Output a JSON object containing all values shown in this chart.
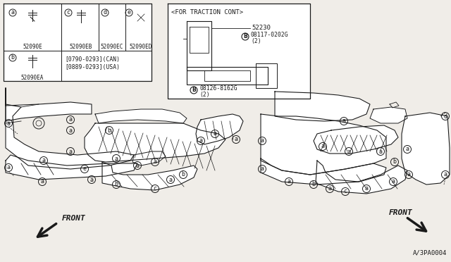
{
  "bg_color": "#f0ede8",
  "line_color": "#1a1a1a",
  "part_date_can": "[0790-0293](CAN)",
  "part_date_usa": "[0889-0293](USA)",
  "traction_label": "<FOR TRACTION CONT>",
  "part_52230": "52230",
  "part_08117": "08117-0202G",
  "part_08117_qty": "(2)",
  "part_08126": "08126-8162G",
  "part_08126_qty": "(2)",
  "drawing_number": "A/3PA0004",
  "front_label": "FRONT",
  "parts": [
    {
      "label": "a",
      "code": "52090E"
    },
    {
      "label": "c",
      "code": "52090EB"
    },
    {
      "label": "d",
      "code": "52090EC"
    },
    {
      "label": "e",
      "code": "52090ED"
    },
    {
      "label": "b",
      "code": "52090EA"
    }
  ]
}
